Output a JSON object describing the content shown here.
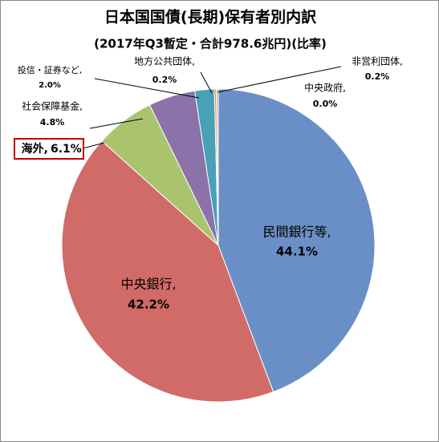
{
  "chart_data": {
    "type": "pie",
    "title": "日本国国債(長期)保有者別内訳",
    "subtitle": "(2017年Q3暫定・合計978.6兆円)(比率)",
    "categories": [
      "民間銀行等,",
      "中央銀行,",
      "海外,",
      "社会保障基金,",
      "投信・証券など,",
      "地方公共団体,",
      "非営利団体,",
      "中央政府,"
    ],
    "values": [
      44.1,
      42.2,
      6.1,
      4.8,
      2.0,
      0.2,
      0.2,
      0.0
    ],
    "value_labels": [
      "44.1%",
      "42.2%",
      "6.1%",
      "4.8%",
      "2.0%",
      "0.2%",
      "0.2%",
      "0.0%"
    ],
    "colors": [
      "#6a8fc6",
      "#d06b67",
      "#aac46e",
      "#8b73a9",
      "#48a1b6",
      "#f08a3e",
      "#b8b8b8",
      "#9aa9cf"
    ]
  }
}
